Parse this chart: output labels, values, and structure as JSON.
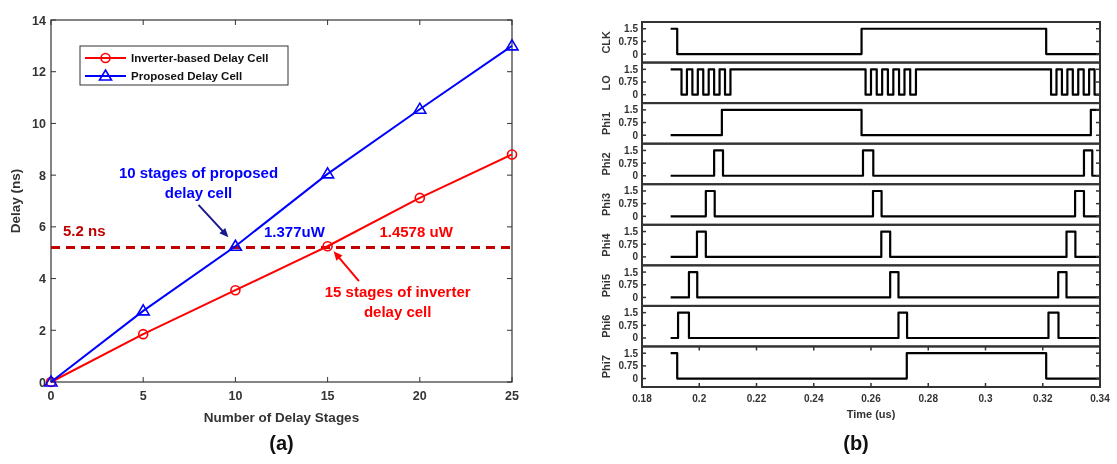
{
  "chart_data": [
    {
      "type": "line",
      "xlabel": "Number of Delay Stages",
      "ylabel": "Delay (ns)",
      "x": [
        0,
        5,
        10,
        15,
        20,
        25
      ],
      "xlim": [
        0,
        25
      ],
      "ylim": [
        0,
        14
      ],
      "xticks": [
        0,
        5,
        10,
        15,
        20,
        25
      ],
      "yticks": [
        0,
        2,
        4,
        6,
        8,
        10,
        12,
        14
      ],
      "grid": false,
      "legend": "top left",
      "line_style": "solid",
      "series": [
        {
          "name": "Inverter-based Delay Cell",
          "color": "#ff0000",
          "marker": "circle",
          "values": [
            0,
            1.85,
            3.55,
            5.25,
            7.12,
            8.8
          ]
        },
        {
          "name": "Proposed Delay Cell",
          "color": "#0000ff",
          "marker": "triangle",
          "values": [
            0,
            2.75,
            5.25,
            8.05,
            10.55,
            13.0
          ]
        }
      ],
      "ref_lines": [
        {
          "axis": "y",
          "value": 5.2,
          "label": "5.2 ns",
          "color": "#c00000",
          "line_style": "dashed"
        }
      ],
      "annotations": [
        "10 stages of proposed delay cell",
        {
          "text": "15 stages of inverter delay cell",
          "x": 15,
          "y": 5.25
        },
        "1.377uW",
        "1.4578 uW",
        "(a)"
      ]
    },
    {
      "type": "step",
      "ylabel": "CLK",
      "xlim": [
        0.18,
        0.34
      ],
      "ylim": [
        -0.5,
        1.9
      ],
      "yticks": [
        0,
        0.75,
        1.5
      ],
      "tick_labels": "y",
      "grid": false,
      "color": "#000000",
      "x": [
        0.19,
        0.1923,
        0.2567,
        0.3212,
        0.34
      ],
      "values": [
        1.5,
        0,
        1.5,
        0,
        0
      ]
    },
    {
      "type": "step",
      "ylabel": "LO",
      "xlim": [
        0.18,
        0.34
      ],
      "ylim": [
        -0.5,
        1.9
      ],
      "yticks": [
        0,
        0.75,
        1.5
      ],
      "tick_labels": "y",
      "grid": false,
      "color": "#000000",
      "x": [
        0.19,
        0.1938,
        0.1957,
        0.1976,
        0.1995,
        0.2014,
        0.2033,
        0.2052,
        0.2071,
        0.209,
        0.2109,
        0.2581,
        0.26,
        0.262,
        0.2639,
        0.2659,
        0.2678,
        0.2698,
        0.2717,
        0.2737,
        0.2757,
        0.3229,
        0.3248,
        0.3267,
        0.3286,
        0.3305,
        0.3324,
        0.3343,
        0.3362,
        0.3381,
        0.34
      ],
      "values": [
        1.5,
        0,
        1.5,
        0,
        1.5,
        0,
        1.5,
        0,
        1.5,
        0,
        1.5,
        0,
        1.5,
        0,
        1.5,
        0,
        1.5,
        0,
        1.5,
        0,
        1.5,
        0,
        1.5,
        0,
        1.5,
        0,
        1.5,
        0,
        1.5,
        0,
        0
      ]
    },
    {
      "type": "step",
      "ylabel": "Phi1",
      "xlim": [
        0.18,
        0.34
      ],
      "ylim": [
        -0.5,
        1.9
      ],
      "yticks": [
        0,
        0.75,
        1.5
      ],
      "tick_labels": "y",
      "grid": false,
      "color": "#000000",
      "x": [
        0.19,
        0.2079,
        0.2567,
        0.3368,
        0.34
      ],
      "values": [
        0,
        1.5,
        0,
        1.5,
        1.5
      ]
    },
    {
      "type": "step",
      "ylabel": "Phi2",
      "xlim": [
        0.18,
        0.34
      ],
      "ylim": [
        -0.5,
        1.9
      ],
      "yticks": [
        0,
        0.75,
        1.5
      ],
      "tick_labels": "y",
      "grid": false,
      "color": "#000000",
      "x": [
        0.19,
        0.2052,
        0.2083,
        0.2572,
        0.2608,
        0.3344,
        0.3373,
        0.34
      ],
      "values": [
        0,
        1.5,
        0,
        1.5,
        0,
        1.5,
        0,
        0
      ]
    },
    {
      "type": "step",
      "ylabel": "Phi3",
      "xlim": [
        0.18,
        0.34
      ],
      "ylim": [
        -0.5,
        1.9
      ],
      "yticks": [
        0,
        0.75,
        1.5
      ],
      "tick_labels": "y",
      "grid": false,
      "color": "#000000",
      "x": [
        0.19,
        0.2023,
        0.2054,
        0.2607,
        0.2637,
        0.3313,
        0.3344,
        0.34
      ],
      "values": [
        0,
        1.5,
        0,
        1.5,
        0,
        1.5,
        0,
        0
      ]
    },
    {
      "type": "step",
      "ylabel": "Phi4",
      "xlim": [
        0.18,
        0.34
      ],
      "ylim": [
        -0.5,
        1.9
      ],
      "yticks": [
        0,
        0.75,
        1.5
      ],
      "tick_labels": "y",
      "grid": false,
      "color": "#000000",
      "x": [
        0.19,
        0.1992,
        0.2023,
        0.2636,
        0.2667,
        0.3283,
        0.3314,
        0.34
      ],
      "values": [
        0,
        1.5,
        0,
        1.5,
        0,
        1.5,
        0,
        0
      ]
    },
    {
      "type": "step",
      "ylabel": "Phi5",
      "xlim": [
        0.18,
        0.34
      ],
      "ylim": [
        -0.5,
        1.9
      ],
      "yticks": [
        0,
        0.75,
        1.5
      ],
      "tick_labels": "y",
      "grid": false,
      "color": "#000000",
      "x": [
        0.19,
        0.1964,
        0.1993,
        0.2667,
        0.2696,
        0.3254,
        0.3283,
        0.34
      ],
      "values": [
        0,
        1.5,
        0,
        1.5,
        0,
        1.5,
        0,
        0
      ]
    },
    {
      "type": "step",
      "ylabel": "Phi6",
      "xlim": [
        0.18,
        0.34
      ],
      "ylim": [
        -0.5,
        1.9
      ],
      "yticks": [
        0,
        0.75,
        1.5
      ],
      "tick_labels": "y",
      "grid": false,
      "color": "#000000",
      "x": [
        0.19,
        0.1926,
        0.1964,
        0.2696,
        0.2726,
        0.322,
        0.3255,
        0.34
      ],
      "values": [
        0,
        1.5,
        0,
        1.5,
        0,
        1.5,
        0,
        0
      ]
    },
    {
      "type": "step",
      "ylabel": "Phi7",
      "xlabel": "Time (us)",
      "xlim": [
        0.18,
        0.34
      ],
      "ylim": [
        -0.5,
        1.9
      ],
      "yticks": [
        0,
        0.75,
        1.5
      ],
      "xticks": [
        0.18,
        0.2,
        0.22,
        0.24,
        0.26,
        0.28,
        0.3,
        0.32,
        0.34
      ],
      "grid": false,
      "color": "#000000",
      "x": [
        0.19,
        0.1923,
        0.2725,
        0.3212,
        0.34
      ],
      "values": [
        1.5,
        0,
        1.5,
        0,
        0
      ],
      "annotations": [
        "(b)"
      ]
    }
  ]
}
